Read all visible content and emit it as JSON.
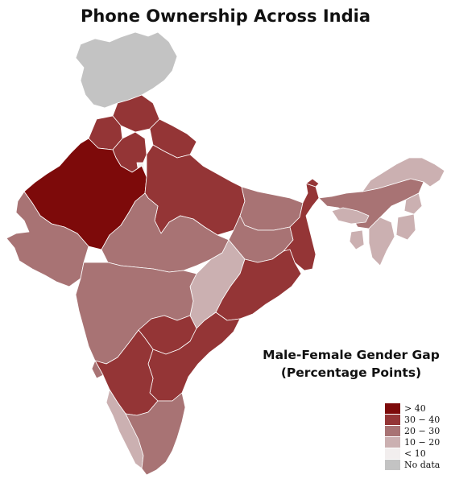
{
  "title": "Phone Ownership Across India",
  "legend": {
    "title_line1": "Male-Female Gender Gap",
    "title_line2": "(Percentage Points)",
    "items": [
      {
        "label": "> 40",
        "color": "#7d0a0a"
      },
      {
        "label": "30 − 40",
        "color": "#943536"
      },
      {
        "label": "20 − 30",
        "color": "#a87374"
      },
      {
        "label": "10 − 20",
        "color": "#cbb0b1"
      },
      {
        "label": "< 10",
        "color": "#f2eeee"
      },
      {
        "label": "No data",
        "color": "#c3c3c3"
      }
    ]
  }
}
